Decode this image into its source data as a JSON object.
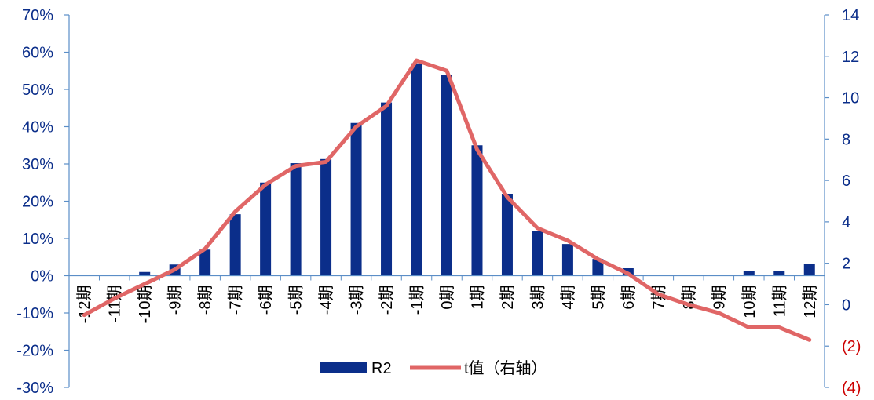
{
  "chart_data": {
    "type": "bar+line",
    "categories": [
      "-12期",
      "-11期",
      "-10期",
      "-9期",
      "-8期",
      "-7期",
      "-6期",
      "-5期",
      "-4期",
      "-3期",
      "-2期",
      "-1期",
      "0期",
      "1期",
      "2期",
      "3期",
      "4期",
      "5期",
      "6期",
      "7期",
      "8期",
      "9期",
      "10期",
      "11期",
      "12期"
    ],
    "series": [
      {
        "name": "R2",
        "type": "bar",
        "axis": "left",
        "color": "#0b2e8a",
        "values": [
          0.0,
          0.0,
          1.0,
          3.0,
          7.0,
          16.5,
          25.0,
          30.2,
          31.3,
          41.0,
          46.5,
          57.0,
          54.0,
          35.0,
          22.0,
          12.0,
          8.5,
          4.5,
          2.0,
          0.3,
          0.0,
          0.0,
          1.3,
          1.3,
          3.2
        ]
      },
      {
        "name": "t值（右轴）",
        "type": "line",
        "axis": "right",
        "color": "#e06666",
        "values": [
          -0.5,
          0.3,
          1.0,
          1.7,
          2.7,
          4.5,
          5.8,
          6.7,
          6.9,
          8.6,
          9.6,
          11.8,
          11.3,
          7.5,
          5.2,
          3.7,
          3.1,
          2.2,
          1.5,
          0.5,
          0.0,
          -0.4,
          -1.1,
          -1.1,
          -1.7
        ]
      }
    ],
    "ylim_left": [
      -30,
      70
    ],
    "yticks_left": [
      "70%",
      "60%",
      "50%",
      "40%",
      "30%",
      "20%",
      "10%",
      "0%",
      "-10%",
      "-20%",
      "-30%"
    ],
    "ylim_right": [
      -4,
      14
    ],
    "yticks_right": [
      "14",
      "12",
      "10",
      "8",
      "6",
      "4",
      "2",
      "0",
      "(2)",
      "(4)"
    ],
    "right_tick_colors": {
      "negative": "#cc0000",
      "positive": "#0b2e8a"
    },
    "left_tick_color": "#0b2e8a",
    "axis_color": "#5b8ec7",
    "legend_position": "bottom-center",
    "grid": false
  }
}
